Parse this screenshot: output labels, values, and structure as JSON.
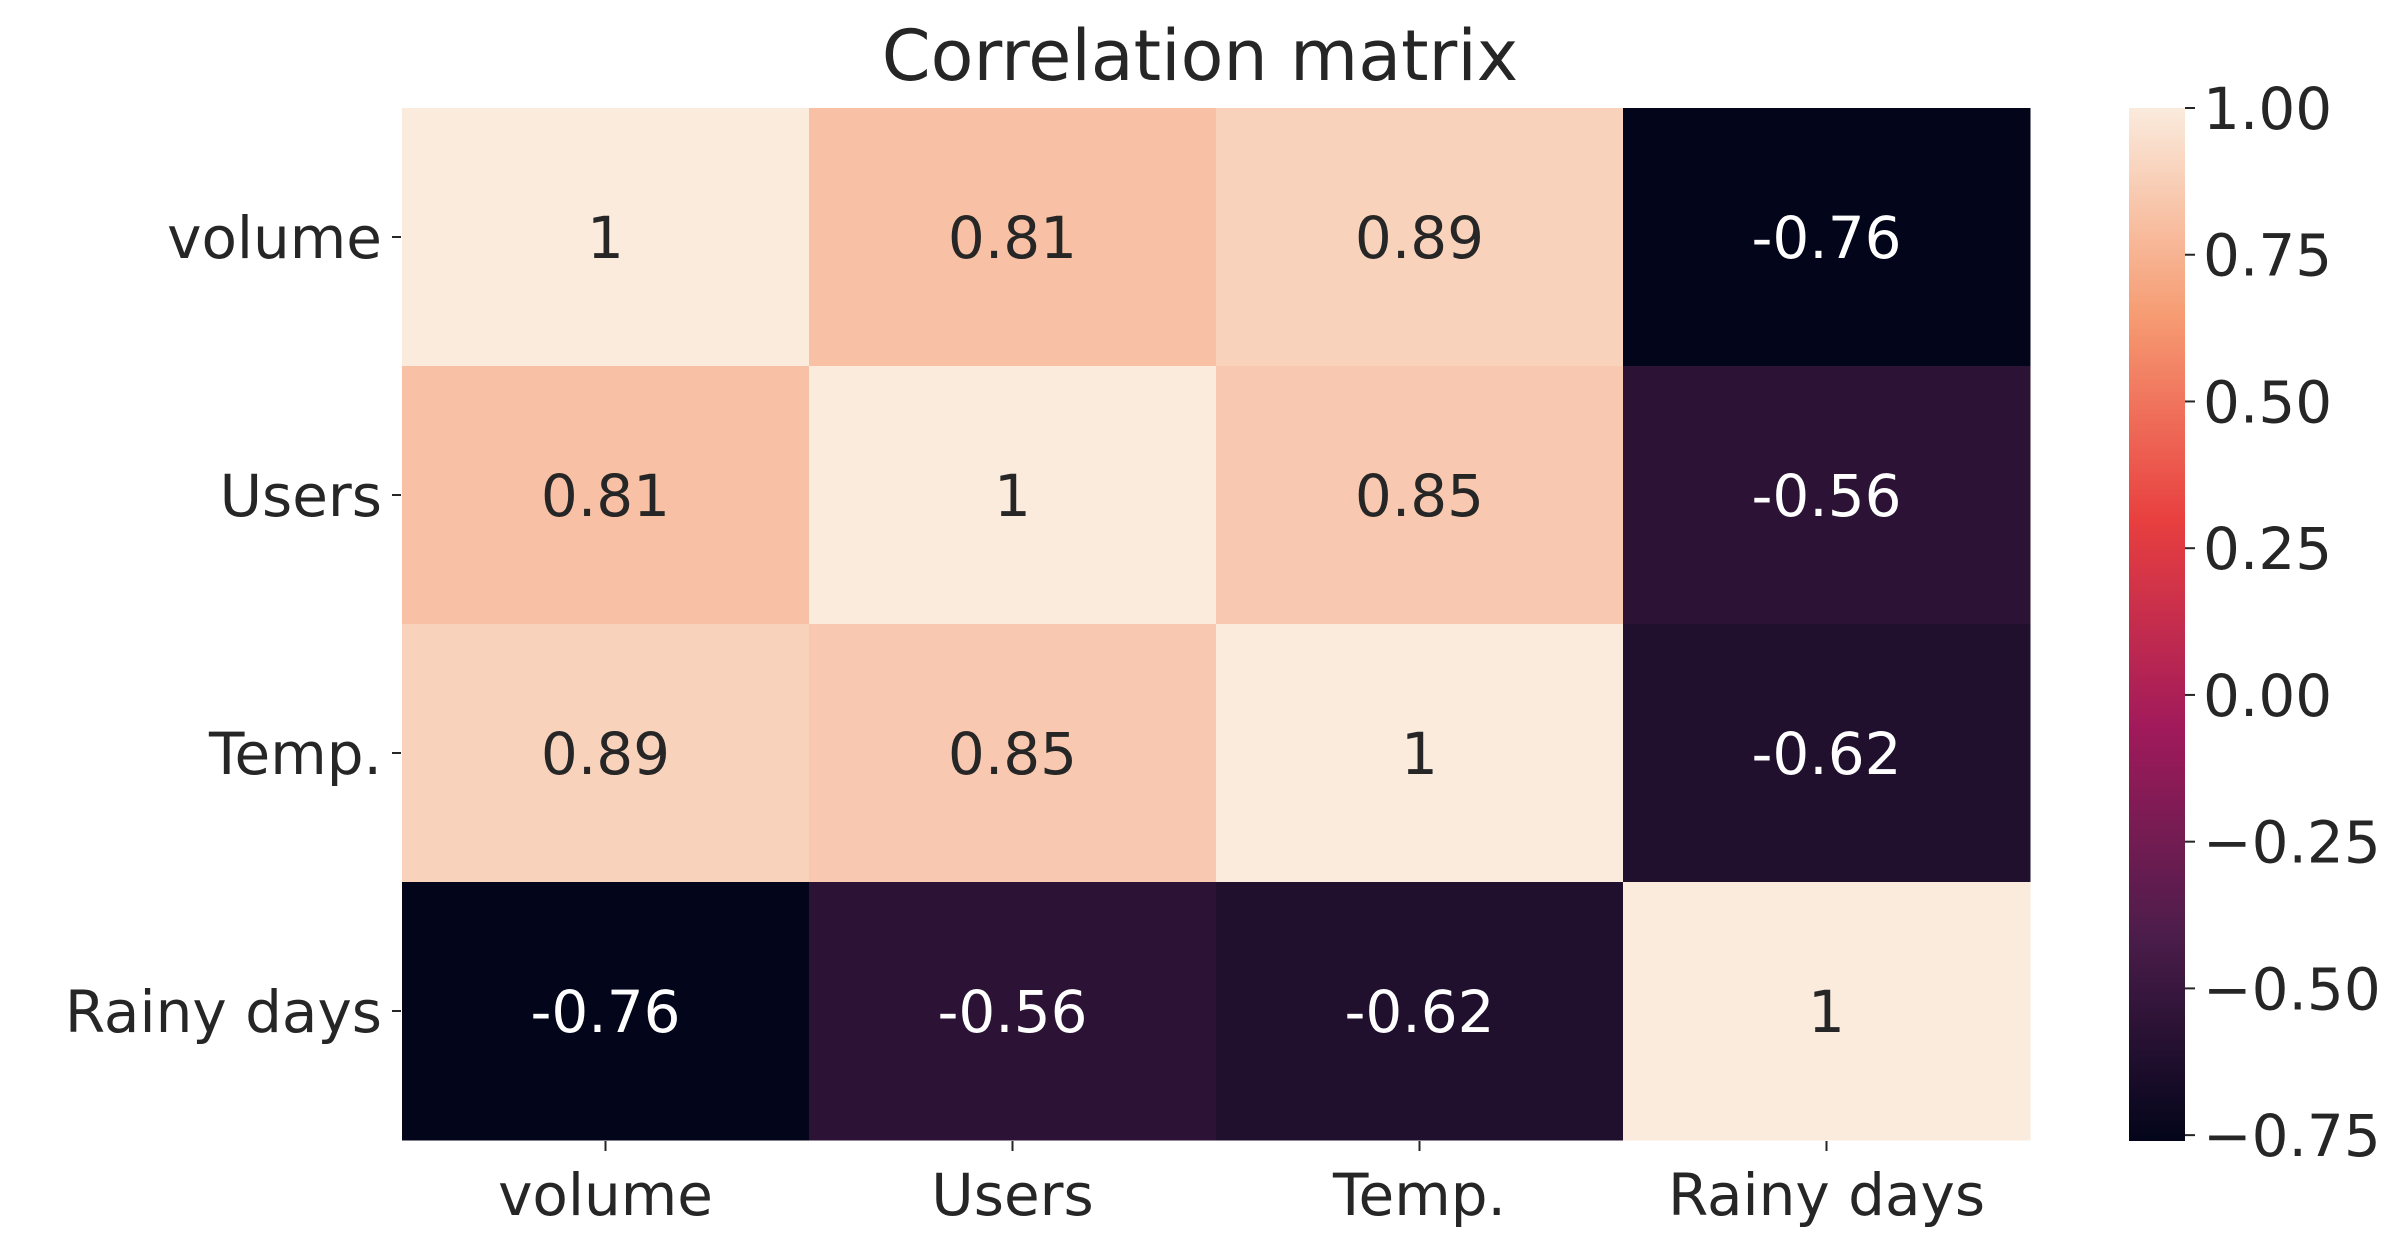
{
  "chart_data": {
    "type": "heatmap",
    "title": "Correlation matrix",
    "row_labels": [
      "volume",
      "Users",
      "Temp.",
      "Rainy days"
    ],
    "col_labels": [
      "volume",
      "Users",
      "Temp.",
      "Rainy days"
    ],
    "values": [
      [
        1.0,
        0.81,
        0.89,
        -0.76
      ],
      [
        0.81,
        1.0,
        0.85,
        -0.56
      ],
      [
        0.89,
        0.85,
        1.0,
        -0.62
      ],
      [
        -0.76,
        -0.56,
        -0.62,
        1.0
      ]
    ],
    "annotations": [
      [
        "1",
        "0.81",
        "0.89",
        "-0.76"
      ],
      [
        "0.81",
        "1",
        "0.85",
        "-0.56"
      ],
      [
        "0.89",
        "0.85",
        "1",
        "-0.62"
      ],
      [
        "-0.76",
        "-0.56",
        "-0.62",
        "1"
      ]
    ],
    "colorbar": {
      "vmin": -0.76,
      "vmax": 1.0,
      "tick_values": [
        1.0,
        0.75,
        0.5,
        0.25,
        0.0,
        -0.25,
        -0.5,
        -0.75
      ],
      "tick_labels": [
        "1.00",
        "0.75",
        "0.50",
        "0.25",
        "0.00",
        "−0.25",
        "−0.50",
        "−0.75"
      ],
      "colormap": "rocket",
      "colormap_stops": [
        "#03051a",
        "#4c1d4b",
        "#a11a5b",
        "#e83f3f",
        "#f69c73",
        "#faebdd"
      ]
    },
    "grid": false
  }
}
